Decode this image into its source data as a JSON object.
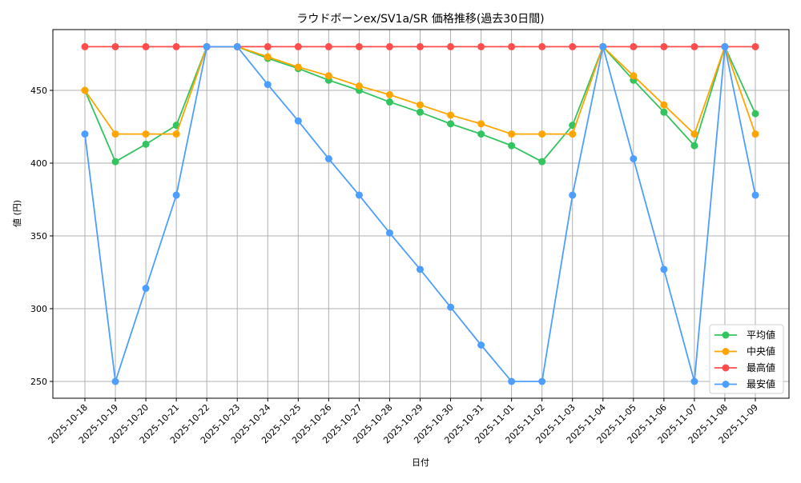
{
  "chart_data": {
    "type": "line",
    "title": "ラウドボーンex/SV1a/SR 価格推移(過去30日間)",
    "xlabel": "日付",
    "ylabel": "値 (円)",
    "ylim": [
      238,
      490
    ],
    "yticks": [
      250,
      300,
      350,
      400,
      450
    ],
    "grid": true,
    "legend_position": "lower right",
    "x": [
      "2025-10-18",
      "2025-10-19",
      "2025-10-20",
      "2025-10-21",
      "2025-10-22",
      "2025-10-23",
      "2025-10-24",
      "2025-10-25",
      "2025-10-26",
      "2025-10-27",
      "2025-10-28",
      "2025-10-29",
      "2025-10-30",
      "2025-10-31",
      "2025-11-01",
      "2025-11-02",
      "2025-11-03",
      "2025-11-04",
      "2025-11-05",
      "2025-11-06",
      "2025-11-07",
      "2025-11-08",
      "2025-11-09"
    ],
    "series": [
      {
        "name": "平均値",
        "color": "#33c45f",
        "values": [
          450,
          401,
          413,
          426,
          480,
          480,
          472,
          465,
          457,
          450,
          442,
          435,
          427,
          420,
          412,
          401,
          426,
          480,
          457,
          435,
          412,
          480,
          434
        ]
      },
      {
        "name": "中央値",
        "color": "#ffa500",
        "values": [
          450,
          420,
          420,
          420,
          480,
          480,
          473,
          466,
          460,
          453,
          447,
          440,
          433,
          427,
          420,
          420,
          420,
          480,
          460,
          440,
          420,
          480,
          420
        ]
      },
      {
        "name": "最高値",
        "color": "#ff4d4d",
        "values": [
          480,
          480,
          480,
          480,
          480,
          480,
          480,
          480,
          480,
          480,
          480,
          480,
          480,
          480,
          480,
          480,
          480,
          480,
          480,
          480,
          480,
          480,
          480
        ]
      },
      {
        "name": "最安値",
        "color": "#4d9fff",
        "values": [
          420,
          250,
          314,
          378,
          480,
          480,
          454,
          429,
          403,
          378,
          352,
          327,
          301,
          275,
          250,
          250,
          378,
          480,
          403,
          327,
          250,
          480,
          378
        ]
      }
    ]
  }
}
